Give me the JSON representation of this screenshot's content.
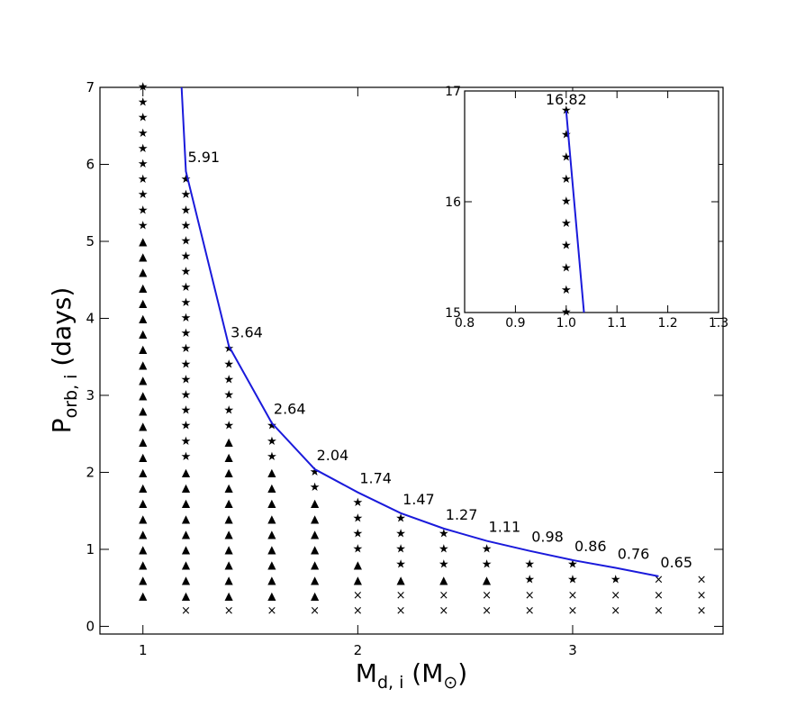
{
  "chart_data": [
    {
      "type": "scatter",
      "name": "main",
      "xlabel": {
        "main": "M",
        "sub": "d, i",
        "unit": "M",
        "unit_symbol": "⊙"
      },
      "ylabel": {
        "main": "P",
        "sub": "orb, i",
        "unit": "(days)"
      },
      "xlim": [
        0.8,
        3.7
      ],
      "ylim": [
        -0.1,
        7
      ],
      "xticks": [
        1,
        2,
        3
      ],
      "yticks": [
        0,
        1,
        2,
        3,
        4,
        5,
        6,
        7
      ],
      "markers": {
        "triangle": "▲",
        "star": "★",
        "cross": "×"
      },
      "grid_columns": [
        {
          "x": 1.0,
          "cross": [],
          "triangle": [
            0.4,
            0.6,
            0.8,
            1.0,
            1.2,
            1.4,
            1.6,
            1.8,
            2.0,
            2.2,
            2.4,
            2.6,
            2.8,
            3.0,
            3.2,
            3.4,
            3.6,
            3.8,
            4.0,
            4.2,
            4.4,
            4.6,
            4.8,
            5.0
          ],
          "star": [
            5.2,
            5.4,
            5.6,
            5.8,
            6.0,
            6.2,
            6.4,
            6.6,
            6.8,
            7.0
          ]
        },
        {
          "x": 1.2,
          "cross": [
            0.2
          ],
          "triangle": [
            0.4,
            0.6,
            0.8,
            1.0,
            1.2,
            1.4,
            1.6,
            1.8,
            2.0
          ],
          "star": [
            2.2,
            2.4,
            2.6,
            2.8,
            3.0,
            3.2,
            3.4,
            3.6,
            3.8,
            4.0,
            4.2,
            4.4,
            4.6,
            4.8,
            5.0,
            5.2,
            5.4,
            5.6,
            5.8
          ]
        },
        {
          "x": 1.4,
          "cross": [
            0.2
          ],
          "triangle": [
            0.4,
            0.6,
            0.8,
            1.0,
            1.2,
            1.4,
            1.6,
            1.8,
            2.0,
            2.2,
            2.4
          ],
          "star": [
            2.6,
            2.8,
            3.0,
            3.2,
            3.4,
            3.6
          ]
        },
        {
          "x": 1.6,
          "cross": [
            0.2
          ],
          "triangle": [
            0.4,
            0.6,
            0.8,
            1.0,
            1.2,
            1.4,
            1.6,
            1.8,
            2.0
          ],
          "star": [
            2.2,
            2.4,
            2.6
          ]
        },
        {
          "x": 1.8,
          "cross": [
            0.2
          ],
          "triangle": [
            0.4,
            0.6,
            0.8,
            1.0,
            1.2,
            1.4,
            1.6
          ],
          "star": [
            1.8,
            2.0
          ]
        },
        {
          "x": 2.0,
          "cross": [
            0.2,
            0.4
          ],
          "triangle": [
            0.6,
            0.8
          ],
          "star": [
            1.0,
            1.2,
            1.4,
            1.6
          ]
        },
        {
          "x": 2.2,
          "cross": [
            0.2,
            0.4
          ],
          "triangle": [
            0.6
          ],
          "star": [
            0.8,
            1.0,
            1.2,
            1.4
          ]
        },
        {
          "x": 2.4,
          "cross": [
            0.2,
            0.4
          ],
          "triangle": [
            0.6
          ],
          "star": [
            0.8,
            1.0,
            1.2
          ]
        },
        {
          "x": 2.6,
          "cross": [
            0.2,
            0.4
          ],
          "triangle": [
            0.6
          ],
          "star": [
            0.8,
            1.0
          ]
        },
        {
          "x": 2.8,
          "cross": [
            0.2,
            0.4
          ],
          "triangle": [],
          "star": [
            0.6,
            0.8
          ]
        },
        {
          "x": 3.0,
          "cross": [
            0.2,
            0.4
          ],
          "triangle": [],
          "star": [
            0.6,
            0.8
          ]
        },
        {
          "x": 3.2,
          "cross": [
            0.2,
            0.4
          ],
          "triangle": [],
          "star": [
            0.6
          ]
        },
        {
          "x": 3.4,
          "cross": [
            0.2,
            0.4,
            0.6
          ],
          "triangle": [],
          "star": []
        },
        {
          "x": 3.6,
          "cross": [
            0.2,
            0.4,
            0.6
          ],
          "triangle": [],
          "star": []
        }
      ],
      "boundary_line": {
        "color": "#1a1adb",
        "x": [
          1.18,
          1.2,
          1.4,
          1.6,
          1.8,
          2.0,
          2.2,
          2.4,
          2.6,
          2.8,
          3.0,
          3.2,
          3.4
        ],
        "y": [
          7.0,
          5.91,
          3.64,
          2.64,
          2.04,
          1.74,
          1.47,
          1.27,
          1.11,
          0.98,
          0.86,
          0.76,
          0.65
        ]
      },
      "annotations": [
        {
          "text": "5.91",
          "x": 1.2,
          "y": 5.91
        },
        {
          "text": "3.64",
          "x": 1.4,
          "y": 3.64
        },
        {
          "text": "2.64",
          "x": 1.6,
          "y": 2.64
        },
        {
          "text": "2.04",
          "x": 1.8,
          "y": 2.04
        },
        {
          "text": "1.74",
          "x": 2.0,
          "y": 1.74
        },
        {
          "text": "1.47",
          "x": 2.2,
          "y": 1.47
        },
        {
          "text": "1.27",
          "x": 2.4,
          "y": 1.27
        },
        {
          "text": "1.11",
          "x": 2.6,
          "y": 1.11
        },
        {
          "text": "0.98",
          "x": 2.8,
          "y": 0.98
        },
        {
          "text": "0.86",
          "x": 3.0,
          "y": 0.86
        },
        {
          "text": "0.76",
          "x": 3.2,
          "y": 0.76
        },
        {
          "text": "0.65",
          "x": 3.4,
          "y": 0.65
        }
      ]
    },
    {
      "type": "scatter",
      "name": "inset",
      "xlim": [
        0.8,
        1.3
      ],
      "ylim": [
        15,
        17
      ],
      "xticks": [
        0.8,
        0.9,
        1.0,
        1.1,
        1.2,
        1.3
      ],
      "xtick_labels": [
        "0.8",
        "0.9",
        "1.0",
        "1.1",
        "1.2",
        "1.3"
      ],
      "yticks": [
        15,
        16,
        17
      ],
      "star_x": 1.0,
      "star_y": [
        15.0,
        15.2,
        15.4,
        15.6,
        15.8,
        16.0,
        16.2,
        16.4,
        16.6,
        16.82
      ],
      "boundary_line": {
        "color": "#1a1adb",
        "x": [
          1.0,
          1.035
        ],
        "y": [
          16.82,
          15.0
        ]
      },
      "annotation": {
        "text": "16.82",
        "x": 1.0,
        "y": 16.82
      }
    }
  ]
}
